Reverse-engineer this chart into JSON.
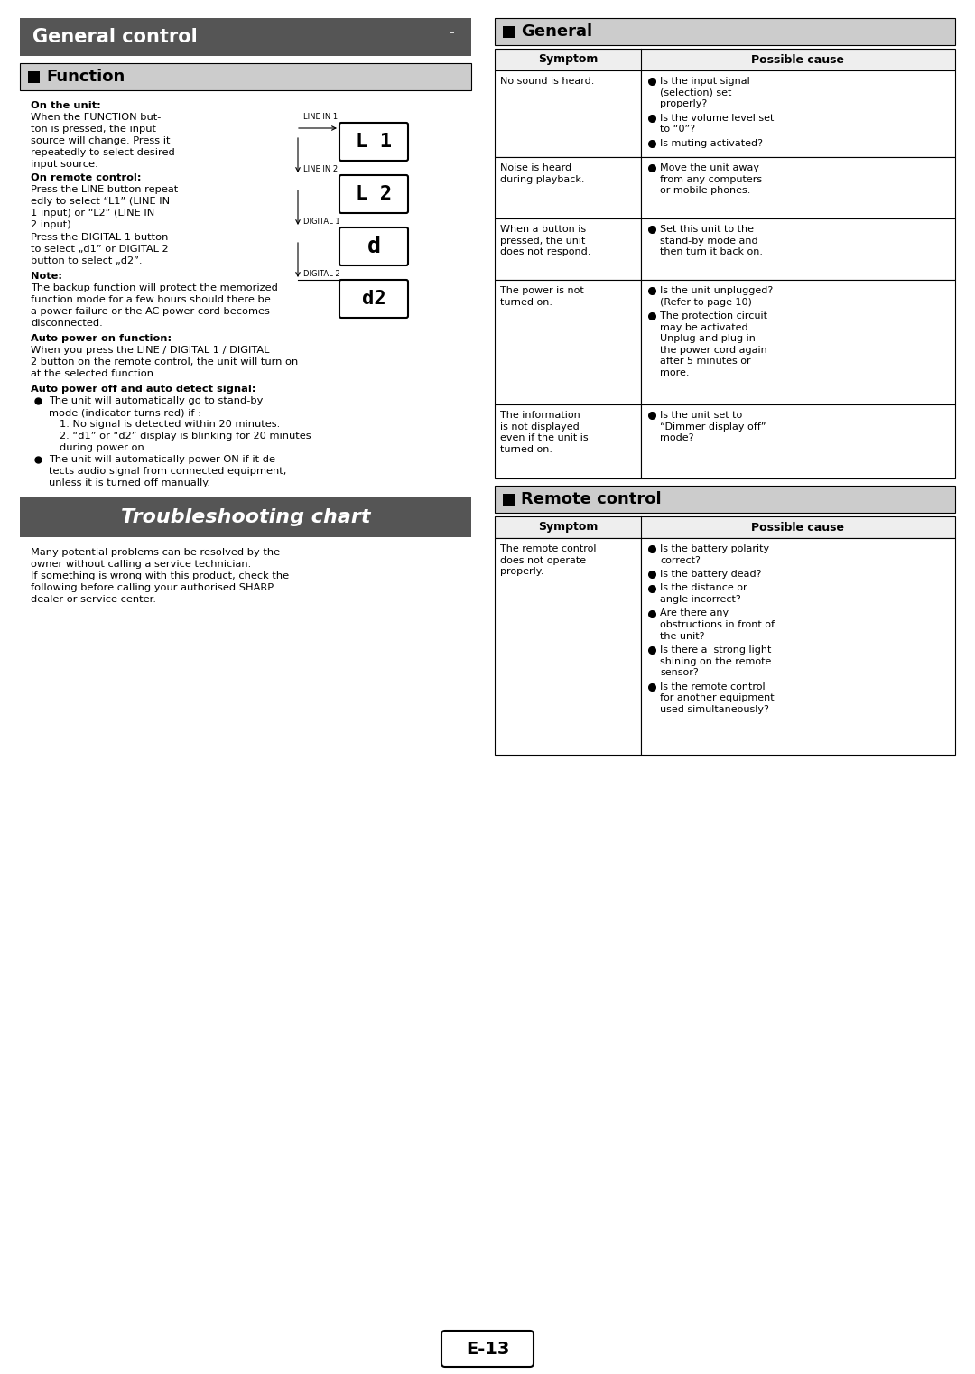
{
  "page_bg": "#ffffff",
  "header_bg": "#555555",
  "header_text": "General control",
  "header_text_color": "#ffffff",
  "section_bg": "#cccccc",
  "body_text_color": "#000000",
  "function_section_title": "Function",
  "function_on_unit_bold": "On the unit:",
  "function_on_remote_bold": "On remote control:",
  "function_note_bold": "Note:",
  "function_auto_on_bold": "Auto power on function:",
  "function_auto_off_bold": "Auto power off and auto detect signal:",
  "function_bullet1_line1": "The unit will automatically go to stand-by",
  "function_bullet1_line2": "mode (indicator turns red) if :",
  "function_num1": "1. No signal is detected within 20 minutes.",
  "function_num2_line1": "2. “d1” or “d2” display is blinking for 20 minutes",
  "function_num2_line2": "during power on.",
  "function_bullet2_line1": "The unit will automatically power ON if it de-",
  "function_bullet2_line2": "tects audio signal from connected equipment,",
  "function_bullet2_line3": "unless it is turned off manually.",
  "troubleshooting_title": "Troubleshooting chart",
  "ts_text1_line1": "Many potential problems can be resolved by the",
  "ts_text1_line2": "owner without calling a service technician.",
  "ts_text2_line1": "If something is wrong with this product, check the",
  "ts_text2_line2": "following before calling your authorised SHARP",
  "ts_text2_line3": "dealer or service center.",
  "general_section_title": "General",
  "remote_section_title": "Remote control",
  "table_header_symptom": "Symptom",
  "table_header_cause": "Possible cause",
  "page_number": "E-13",
  "general_rows": [
    {
      "symptom": "No sound is heard.",
      "symptom_lines": 1,
      "causes": [
        "Is the input signal\n(selection) set\nproperly?",
        "Is the volume level set\nto “0”?",
        "Is muting activated?"
      ]
    },
    {
      "symptom": "Noise is heard\nduring playback.",
      "symptom_lines": 2,
      "causes": [
        "Move the unit away\nfrom any computers\nor mobile phones."
      ]
    },
    {
      "symptom": "When a button is\npressed, the unit\ndoes not respond.",
      "symptom_lines": 3,
      "causes": [
        "Set this unit to the\nstand-by mode and\nthen turn it back on."
      ]
    },
    {
      "symptom": "The power is not\nturned on.",
      "symptom_lines": 2,
      "causes": [
        "Is the unit unplugged?\n(Refer to page 10)",
        "The protection circuit\nmay be activated.\nUnplug and plug in\nthe power cord again\nafter 5 minutes or\nmore."
      ]
    },
    {
      "symptom": "The information\nis not displayed\neven if the unit is\nturned on.",
      "symptom_lines": 4,
      "causes": [
        "Is the unit set to\n“Dimmer display off”\nmode?"
      ]
    }
  ],
  "remote_rows": [
    {
      "symptom": "The remote control\ndoes not operate\nproperly.",
      "causes": [
        "Is the battery polarity\ncorrect?",
        "Is the battery dead?",
        "Is the distance or\nangle incorrect?",
        "Are there any\nobstructions in front of\nthe unit?",
        "Is there a  strong light\nshining on the remote\nsensor?",
        "Is the remote control\nfor another equipment\nused simultaneously?"
      ]
    }
  ]
}
